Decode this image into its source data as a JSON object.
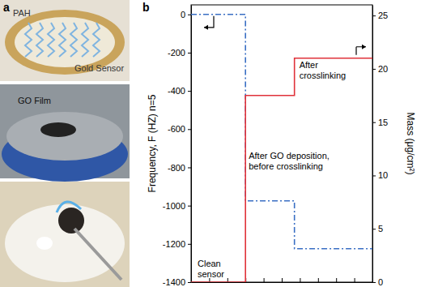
{
  "panel_a": {
    "label": "a",
    "labels": [
      "PAH",
      "Gold Sensor",
      "GO Film"
    ]
  },
  "chart_data": {
    "type": "line",
    "panel_label": "b",
    "y_label": "Frequency, F (HZ) n=5",
    "y2_label": "Mass (μg/cm²)",
    "annotations": [
      [
        "Clean",
        "sensor"
      ],
      [
        "After GO deposition,",
        "before crosslinking"
      ],
      [
        "After",
        "crosslinking"
      ]
    ],
    "x": [
      0,
      3,
      3,
      5.7,
      5.7,
      10
    ],
    "xlim": [
      0,
      10
    ],
    "xticks": [
      0,
      1,
      2,
      3,
      4,
      5,
      6,
      7,
      8,
      9,
      10
    ],
    "ylim": [
      -1400,
      50
    ],
    "yticks": [
      -1400,
      -1200,
      -1000,
      -800,
      -600,
      -400,
      -200,
      0
    ],
    "y2lim": [
      0,
      26
    ],
    "y2ticks": [
      0,
      5,
      10,
      15,
      20,
      25
    ],
    "tick_labels": "y",
    "series": [
      {
        "color": "#3a6fc4",
        "line_style": "dashdot",
        "values": [
          0,
          0,
          -975,
          -975,
          -1225,
          -1225
        ]
      },
      {
        "color": "#e0323a",
        "line_style": "solid",
        "axis": "y2",
        "values": [
          0,
          0,
          17.5,
          17.5,
          21,
          21
        ]
      }
    ]
  }
}
